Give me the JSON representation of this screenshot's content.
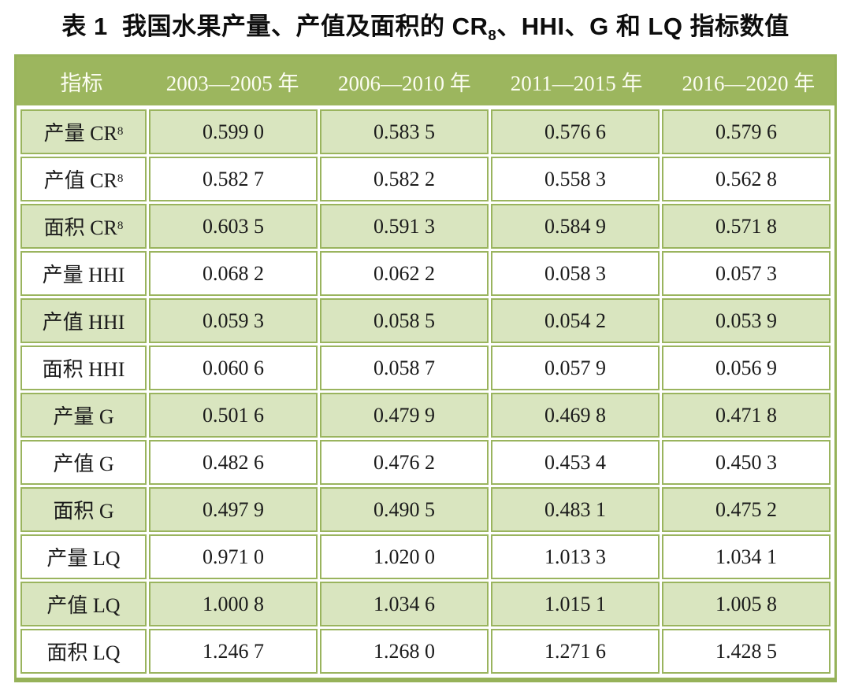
{
  "page": {
    "title": {
      "pre": "表 1  我国水果产量、产值及面积的 CR",
      "sub": "8",
      "post": "、HHI、G 和 LQ 指标数值"
    }
  },
  "colors": {
    "header_background": "#9cb65e",
    "header_text": "#fcfdf2",
    "row_stripe_green": "#d9e5bf",
    "cell_border_green": "#9ab45e",
    "outer_border_green": "#96b259",
    "body_text": "#1b1b1b",
    "title_text": "#0d0d0d"
  },
  "chart_data": {
    "type": "table",
    "title": "表 1 我国水果产量、产值及面积的 CR8、HHI、G 和 LQ 指标数值",
    "columns": [
      "指标",
      "2003—2005 年",
      "2006—2010 年",
      "2011—2015 年",
      "2016—2020 年"
    ],
    "rows": [
      {
        "label": "产量 CR",
        "label_sub": "8",
        "values": [
          "0.599 0",
          "0.583 5",
          "0.576 6",
          "0.579 6"
        ]
      },
      {
        "label": "产值 CR",
        "label_sub": "8",
        "values": [
          "0.582 7",
          "0.582 2",
          "0.558 3",
          "0.562 8"
        ]
      },
      {
        "label": "面积 CR",
        "label_sub": "8",
        "values": [
          "0.603 5",
          "0.591 3",
          "0.584 9",
          "0.571 8"
        ]
      },
      {
        "label": "产量 HHI",
        "label_sub": "",
        "values": [
          "0.068 2",
          "0.062 2",
          "0.058 3",
          "0.057 3"
        ]
      },
      {
        "label": "产值 HHI",
        "label_sub": "",
        "values": [
          "0.059 3",
          "0.058 5",
          "0.054 2",
          "0.053 9"
        ]
      },
      {
        "label": "面积 HHI",
        "label_sub": "",
        "values": [
          "0.060 6",
          "0.058 7",
          "0.057 9",
          "0.056 9"
        ]
      },
      {
        "label": "产量 G",
        "label_sub": "",
        "values": [
          "0.501 6",
          "0.479 9",
          "0.469 8",
          "0.471 8"
        ]
      },
      {
        "label": "产值 G",
        "label_sub": "",
        "values": [
          "0.482 6",
          "0.476 2",
          "0.453 4",
          "0.450 3"
        ]
      },
      {
        "label": "面积 G",
        "label_sub": "",
        "values": [
          "0.497 9",
          "0.490 5",
          "0.483 1",
          "0.475 2"
        ]
      },
      {
        "label": "产量 LQ",
        "label_sub": "",
        "values": [
          "0.971 0",
          "1.020 0",
          "1.013 3",
          "1.034 1"
        ]
      },
      {
        "label": "产值 LQ",
        "label_sub": "",
        "values": [
          "1.000 8",
          "1.034 6",
          "1.015 1",
          "1.005 8"
        ]
      },
      {
        "label": "面积 LQ",
        "label_sub": "",
        "values": [
          "1.246 7",
          "1.268 0",
          "1.271 6",
          "1.428 5"
        ]
      }
    ]
  }
}
